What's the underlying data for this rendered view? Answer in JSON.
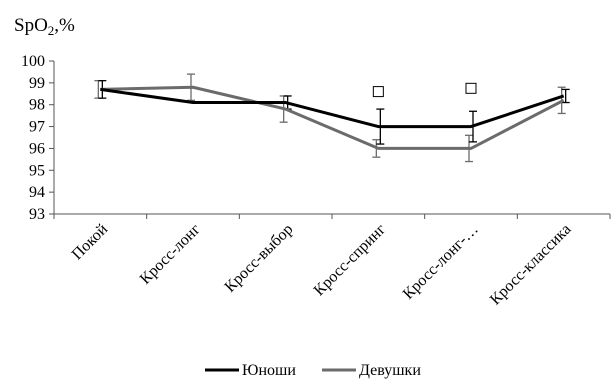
{
  "chart_data": {
    "type": "line",
    "ylabel": {
      "main": "SpO",
      "sub": "2",
      "suffix": ",%"
    },
    "categories": [
      "Покой",
      "Кросс-лонг",
      "Кросс-выбор",
      "Кросс-спринг",
      "Кросс-лонг-…",
      "Кросс-классика"
    ],
    "ylim": [
      93,
      100
    ],
    "yticks": [
      93,
      94,
      95,
      96,
      97,
      98,
      99,
      100
    ],
    "grid": false,
    "legend_position": "bottom",
    "series": [
      {
        "name": "Юноши",
        "color": "#000000",
        "values": [
          98.7,
          98.1,
          98.1,
          97.0,
          97.0,
          98.4
        ],
        "err": [
          0.4,
          0.0,
          0.3,
          0.8,
          0.7,
          0.3
        ]
      },
      {
        "name": "Девушки",
        "color": "#6b6b6b",
        "values": [
          98.7,
          98.8,
          97.8,
          96.0,
          96.0,
          98.2
        ],
        "err": [
          0.4,
          0.6,
          0.6,
          0.4,
          0.6,
          0.6
        ]
      }
    ],
    "markers": [
      {
        "category_index": 3,
        "y": 98.6
      },
      {
        "category_index": 4,
        "y": 98.75
      }
    ]
  }
}
